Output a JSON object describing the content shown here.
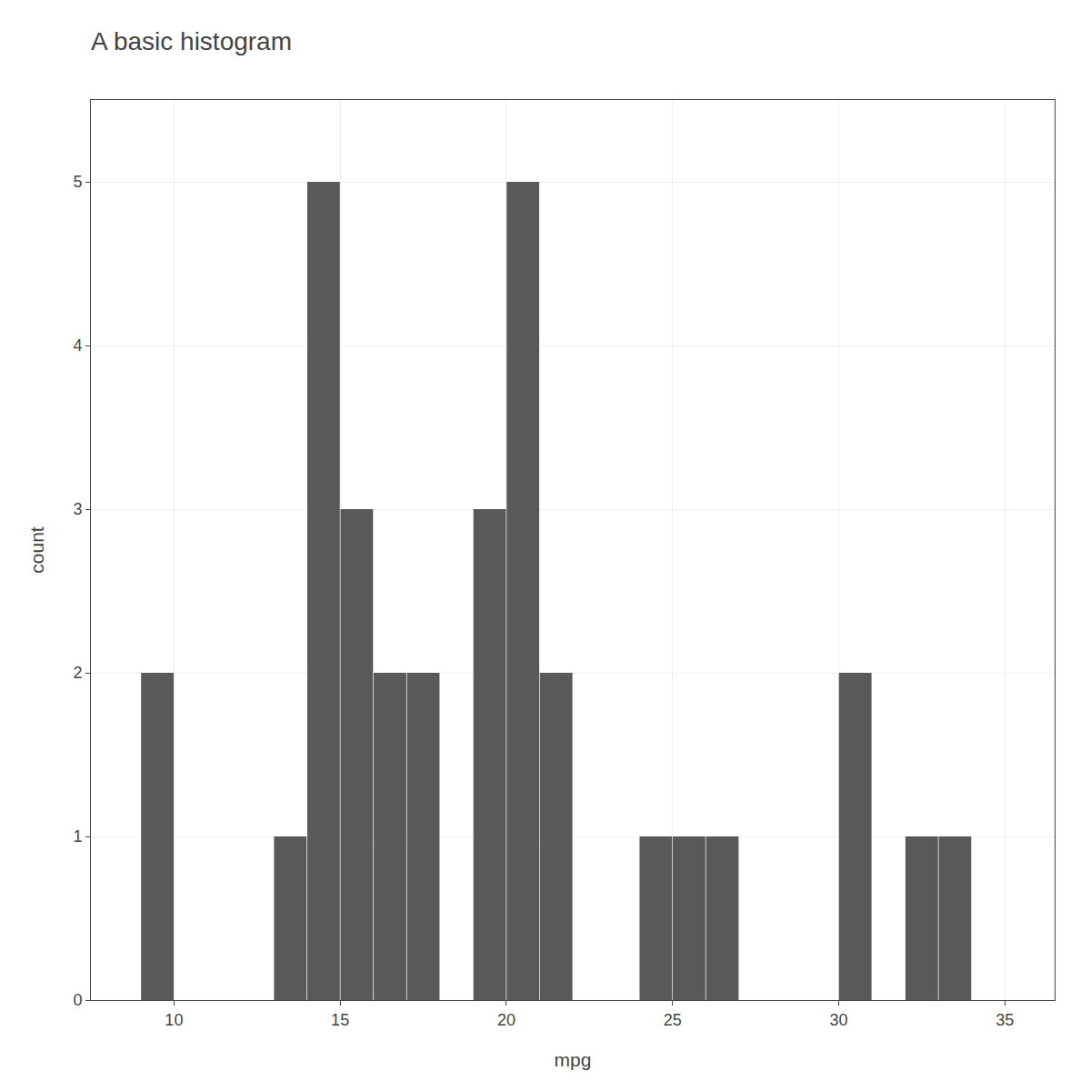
{
  "chart_data": {
    "type": "bar",
    "title": "A basic histogram",
    "xlabel": "mpg",
    "ylabel": "count",
    "x": [
      9.5,
      13.5,
      14.5,
      15.5,
      16.5,
      17.5,
      19.5,
      20.5,
      21.5,
      24.5,
      25.5,
      26.5,
      30.5,
      32.5,
      33.5
    ],
    "values": [
      2,
      1,
      5,
      3,
      2,
      2,
      3,
      5,
      2,
      1,
      1,
      1,
      2,
      1,
      1
    ],
    "color": "#595959",
    "xlim": [
      7.5,
      36.5
    ],
    "xticks": [
      10,
      15,
      20,
      25,
      30,
      35
    ],
    "ylim": [
      0,
      5.5
    ],
    "yticks": [
      0,
      1,
      2,
      3,
      4,
      5
    ],
    "grid": true
  }
}
